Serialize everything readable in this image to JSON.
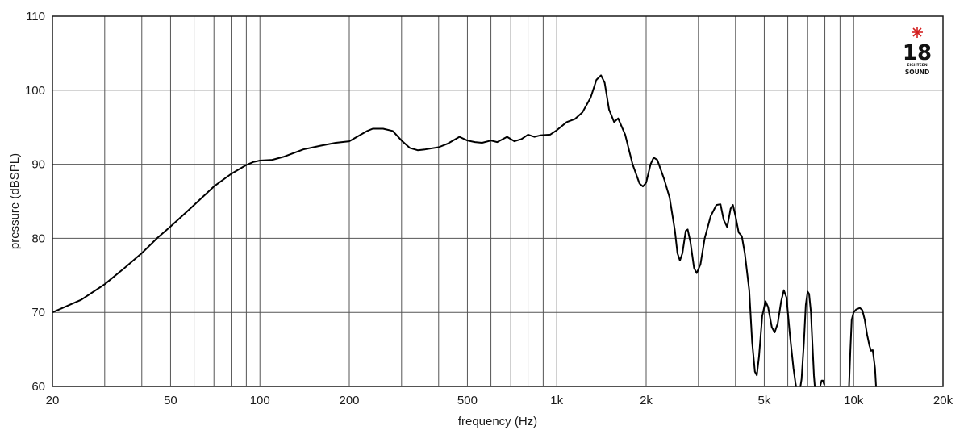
{
  "logo": {
    "number": "18",
    "line1": "EIGHTEEN",
    "line2": "SOUND",
    "star_color": "#d32020"
  },
  "chart_data": {
    "type": "line",
    "title": "",
    "xlabel": "frequency (Hz)",
    "ylabel": "pressure (dBSPL)",
    "xscale": "log",
    "xlim": [
      20,
      20000
    ],
    "ylim": [
      60,
      110
    ],
    "grid": true,
    "x_ticks": [
      {
        "v": 20,
        "label": "20"
      },
      {
        "v": 50,
        "label": "50"
      },
      {
        "v": 100,
        "label": "100"
      },
      {
        "v": 200,
        "label": "200"
      },
      {
        "v": 500,
        "label": "500"
      },
      {
        "v": 1000,
        "label": "1k"
      },
      {
        "v": 2000,
        "label": "2k"
      },
      {
        "v": 5000,
        "label": "5k"
      },
      {
        "v": 10000,
        "label": "10k"
      },
      {
        "v": 20000,
        "label": "20k"
      }
    ],
    "y_ticks": [
      {
        "v": 60,
        "label": "60"
      },
      {
        "v": 70,
        "label": "70"
      },
      {
        "v": 80,
        "label": "80"
      },
      {
        "v": 90,
        "label": "90"
      },
      {
        "v": 100,
        "label": "100"
      },
      {
        "v": 110,
        "label": "110"
      }
    ],
    "x_gridlines": [
      30,
      40,
      50,
      60,
      70,
      80,
      90,
      100,
      200,
      300,
      400,
      500,
      600,
      700,
      800,
      900,
      1000,
      2000,
      3000,
      4000,
      5000,
      6000,
      7000,
      8000,
      9000,
      10000
    ],
    "y_gridlines": [
      70,
      80,
      90,
      100
    ],
    "series": [
      {
        "segments": [
          [
            [
              20,
              70.0
            ],
            [
              25,
              71.7
            ],
            [
              30,
              73.8
            ],
            [
              35,
              76.0
            ],
            [
              40,
              78.0
            ],
            [
              45,
              80.0
            ],
            [
              50,
              81.6
            ],
            [
              55,
              83.1
            ],
            [
              60,
              84.5
            ],
            [
              70,
              87.0
            ],
            [
              80,
              88.7
            ],
            [
              90,
              89.9
            ],
            [
              95,
              90.3
            ],
            [
              100,
              90.5
            ],
            [
              110,
              90.6
            ],
            [
              120,
              91.0
            ],
            [
              140,
              92.0
            ],
            [
              160,
              92.5
            ],
            [
              180,
              92.9
            ],
            [
              200,
              93.1
            ],
            [
              210,
              93.6
            ],
            [
              230,
              94.5
            ],
            [
              240,
              94.8
            ],
            [
              260,
              94.8
            ],
            [
              280,
              94.5
            ],
            [
              300,
              93.2
            ],
            [
              320,
              92.2
            ],
            [
              340,
              91.9
            ],
            [
              360,
              92.0
            ],
            [
              400,
              92.3
            ],
            [
              430,
              92.8
            ],
            [
              470,
              93.7
            ],
            [
              500,
              93.2
            ],
            [
              530,
              93.0
            ],
            [
              560,
              92.9
            ],
            [
              600,
              93.2
            ],
            [
              630,
              93.0
            ],
            [
              680,
              93.7
            ],
            [
              720,
              93.1
            ],
            [
              760,
              93.4
            ],
            [
              800,
              94.0
            ],
            [
              840,
              93.7
            ],
            [
              880,
              93.9
            ],
            [
              950,
              94.0
            ],
            [
              1000,
              94.6
            ],
            [
              1080,
              95.7
            ],
            [
              1150,
              96.1
            ],
            [
              1220,
              97.0
            ],
            [
              1300,
              99.0
            ],
            [
              1360,
              101.4
            ],
            [
              1410,
              102.0
            ],
            [
              1450,
              101.0
            ],
            [
              1500,
              97.4
            ],
            [
              1560,
              95.7
            ],
            [
              1610,
              96.2
            ],
            [
              1700,
              94.0
            ],
            [
              1800,
              90.0
            ],
            [
              1900,
              87.4
            ],
            [
              1950,
              87.0
            ],
            [
              2000,
              87.5
            ],
            [
              2070,
              90.0
            ],
            [
              2120,
              90.9
            ],
            [
              2180,
              90.6
            ],
            [
              2300,
              88.0
            ],
            [
              2400,
              85.5
            ],
            [
              2500,
              81.0
            ],
            [
              2550,
              78.0
            ],
            [
              2600,
              77.0
            ],
            [
              2650,
              78.0
            ],
            [
              2720,
              81.0
            ],
            [
              2760,
              81.2
            ],
            [
              2820,
              79.5
            ],
            [
              2900,
              76.0
            ],
            [
              2960,
              75.3
            ],
            [
              3050,
              76.5
            ],
            [
              3150,
              80.0
            ],
            [
              3300,
              83.0
            ],
            [
              3450,
              84.5
            ],
            [
              3560,
              84.6
            ],
            [
              3650,
              82.5
            ],
            [
              3750,
              81.5
            ],
            [
              3850,
              84.0
            ],
            [
              3920,
              84.5
            ],
            [
              4000,
              83.0
            ],
            [
              4100,
              80.8
            ],
            [
              4200,
              80.3
            ],
            [
              4300,
              78.0
            ],
            [
              4450,
              73.0
            ],
            [
              4550,
              66.0
            ],
            [
              4650,
              62.0
            ],
            [
              4720,
              61.5
            ],
            [
              4800,
              64.0
            ],
            [
              4920,
              69.5
            ],
            [
              5050,
              71.5
            ],
            [
              5150,
              70.7
            ],
            [
              5300,
              68.0
            ],
            [
              5420,
              67.3
            ],
            [
              5550,
              68.5
            ],
            [
              5700,
              71.5
            ],
            [
              5820,
              73.0
            ],
            [
              5940,
              72.0
            ],
            [
              6100,
              67.0
            ],
            [
              6270,
              62.5
            ],
            [
              6370,
              60.5
            ],
            [
              6400,
              60.0
            ]
          ],
          [
            [
              6620,
              60.0
            ],
            [
              6680,
              61.0
            ],
            [
              6800,
              66.0
            ],
            [
              6900,
              71.0
            ],
            [
              7000,
              72.8
            ],
            [
              7080,
              72.5
            ],
            [
              7180,
              70.0
            ],
            [
              7300,
              64.0
            ],
            [
              7350,
              61.5
            ],
            [
              7400,
              60.0
            ]
          ],
          [
            [
              7730,
              60.2
            ],
            [
              7800,
              60.8
            ],
            [
              7880,
              60.8
            ],
            [
              7950,
              60.3
            ]
          ],
          [
            [
              9650,
              60.0
            ],
            [
              9750,
              65.0
            ],
            [
              9850,
              69.0
            ],
            [
              10000,
              70.0
            ],
            [
              10200,
              70.4
            ],
            [
              10500,
              70.6
            ],
            [
              10700,
              70.3
            ],
            [
              10900,
              69.0
            ],
            [
              11100,
              67.0
            ],
            [
              11300,
              65.5
            ],
            [
              11450,
              64.8
            ],
            [
              11600,
              64.9
            ],
            [
              11800,
              62.5
            ],
            [
              11900,
              60.0
            ]
          ]
        ]
      }
    ]
  }
}
